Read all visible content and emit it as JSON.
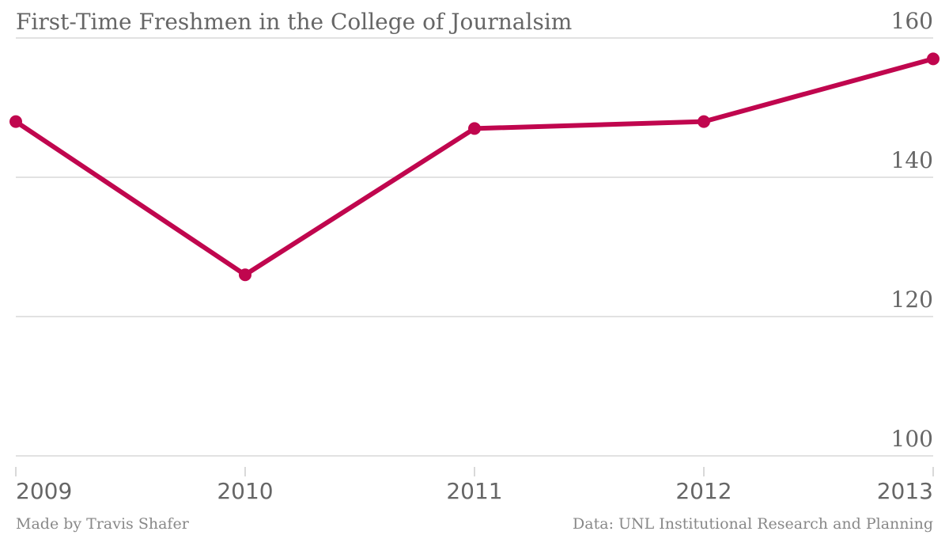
{
  "chart_data": {
    "type": "line",
    "title": "First-Time Freshmen in the College of Journalsim",
    "x": [
      "2009",
      "2010",
      "2011",
      "2012",
      "2013"
    ],
    "series": [
      {
        "values": [
          148,
          126,
          147,
          148,
          157
        ]
      }
    ],
    "ylim": [
      100,
      160
    ],
    "yticks": [
      "100",
      "120",
      "140",
      "160"
    ],
    "grid": true,
    "y_axis_side": "right",
    "line_color": "#c0064e"
  },
  "footer": {
    "credit": "Made by Travis Shafer",
    "source": "Data: UNL Institutional Research and Planning"
  }
}
